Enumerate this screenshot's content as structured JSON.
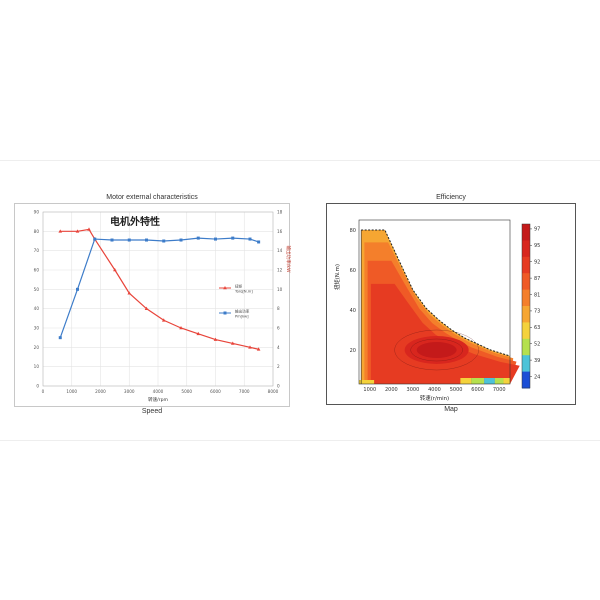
{
  "chart_data": [
    {
      "type": "line",
      "title": "Motor external characteristics",
      "inner_title": "电机外特性",
      "caption": "Speed",
      "xlabel": "转速/rpm",
      "ylabel_right": "输出功率/kW",
      "x_ticks": [
        0,
        1000,
        2000,
        3000,
        4000,
        5000,
        6000,
        7000,
        8000
      ],
      "y_left_ticks": [
        0,
        10,
        20,
        30,
        40,
        50,
        60,
        70,
        80,
        90
      ],
      "y_right_ticks": [
        0,
        2,
        4,
        6,
        8,
        10,
        12,
        14,
        16,
        18
      ],
      "xlim": [
        0,
        8000
      ],
      "ylim_left": [
        0,
        90
      ],
      "ylim_right": [
        0,
        18
      ],
      "grid": true,
      "series": [
        {
          "name": "扭矩 Torq[N.m]",
          "axis": "left",
          "color": "#e8443a",
          "marker": "triangle",
          "x": [
            600,
            1200,
            1600,
            1800,
            2500,
            3000,
            3600,
            4200,
            4800,
            5400,
            6000,
            6600,
            7200,
            7500
          ],
          "y": [
            80,
            80,
            81,
            76,
            60,
            48,
            40,
            34,
            30,
            27,
            24,
            22,
            20,
            19
          ]
        },
        {
          "name": "输出功率 Pm[kw]",
          "axis": "right",
          "color": "#3d7cc9",
          "marker": "square",
          "x": [
            600,
            1200,
            1800,
            2400,
            3000,
            3600,
            4200,
            4800,
            5400,
            6000,
            6600,
            7200,
            7500
          ],
          "y": [
            5,
            10,
            15.2,
            15.1,
            15.1,
            15.1,
            15.0,
            15.1,
            15.3,
            15.2,
            15.3,
            15.2,
            14.9
          ]
        }
      ]
    },
    {
      "type": "heatmap",
      "title": "Efficiency",
      "caption": "Map",
      "xlabel": "转速(r/min)",
      "ylabel": "扭矩(N.m)",
      "x_ticks": [
        1000,
        2000,
        3000,
        4000,
        5000,
        6000,
        7000
      ],
      "y_ticks": [
        20,
        40,
        60,
        80
      ],
      "xlim": [
        500,
        7500
      ],
      "ylim": [
        3,
        85
      ],
      "colorbar_ticks": [
        97,
        95,
        92,
        87,
        81,
        73,
        63,
        52,
        39,
        24
      ],
      "colorbar_colors": [
        "#c41a1a",
        "#d8261e",
        "#e63b22",
        "#ef5a26",
        "#f47f2b",
        "#f6a632",
        "#f4d23c",
        "#b5e04e",
        "#4cc3d8",
        "#1b4ed6"
      ]
    }
  ]
}
